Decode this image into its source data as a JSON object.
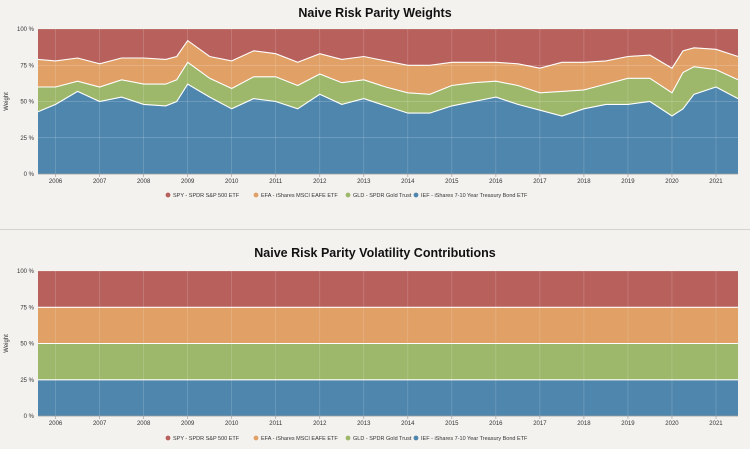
{
  "chart_data": [
    {
      "type": "area",
      "stacked": true,
      "percent": true,
      "title": "Naive Risk Parity Weights",
      "ylabel": "Weight",
      "ylim": [
        0,
        100
      ],
      "yticks": [
        "0 %",
        "25 %",
        "50 %",
        "75 %",
        "100 %"
      ],
      "xticks": [
        "2006",
        "2007",
        "2008",
        "2009",
        "2010",
        "2011",
        "2012",
        "2013",
        "2014",
        "2015",
        "2016",
        "2017",
        "2018",
        "2019",
        "2020",
        "2021"
      ],
      "grid": true,
      "legend": "bottom",
      "x": [
        2005.6,
        2006.0,
        2006.5,
        2007.0,
        2007.5,
        2008.0,
        2008.5,
        2008.75,
        2009.0,
        2009.5,
        2010.0,
        2010.5,
        2011.0,
        2011.5,
        2012.0,
        2012.5,
        2013.0,
        2013.5,
        2014.0,
        2014.5,
        2015.0,
        2015.5,
        2016.0,
        2016.5,
        2017.0,
        2017.5,
        2018.0,
        2018.5,
        2019.0,
        2019.5,
        2020.0,
        2020.25,
        2020.5,
        2021.0,
        2021.5
      ],
      "series": [
        {
          "name": "IEF - iShares 7-10 Year Treasury Bond ETF",
          "color": "#4f86ad",
          "values": [
            43,
            48,
            57,
            50,
            53,
            48,
            47,
            50,
            62,
            53,
            45,
            52,
            50,
            45,
            55,
            48,
            52,
            47,
            42,
            42,
            47,
            50,
            53,
            48,
            44,
            40,
            45,
            48,
            48,
            50,
            40,
            45,
            55,
            60,
            52
          ]
        },
        {
          "name": "GLD - SPDR Gold Trust",
          "color": "#9db86a",
          "values": [
            17,
            12,
            7,
            10,
            12,
            14,
            15,
            15,
            15,
            13,
            14,
            15,
            17,
            16,
            14,
            15,
            13,
            13,
            14,
            13,
            14,
            13,
            11,
            13,
            12,
            17,
            13,
            14,
            18,
            16,
            16,
            25,
            19,
            12,
            13
          ]
        },
        {
          "name": "EFA - iShares MSCI EAFE ETF",
          "color": "#e0a066",
          "values": [
            19,
            18,
            16,
            16,
            15,
            18,
            17,
            16,
            15,
            15,
            19,
            18,
            16,
            16,
            14,
            16,
            16,
            18,
            19,
            20,
            16,
            14,
            13,
            15,
            17,
            20,
            19,
            16,
            15,
            16,
            17,
            15,
            13,
            14,
            16
          ]
        },
        {
          "name": "SPY - SPDR S&P 500 ETF",
          "color": "#b8605c",
          "values": [
            21,
            22,
            20,
            24,
            20,
            20,
            21,
            19,
            8,
            19,
            22,
            15,
            17,
            23,
            17,
            21,
            19,
            22,
            25,
            25,
            23,
            23,
            23,
            24,
            27,
            23,
            23,
            22,
            19,
            18,
            27,
            15,
            13,
            14,
            19
          ]
        }
      ]
    },
    {
      "type": "area",
      "stacked": true,
      "percent": true,
      "title": "Naive Risk Parity Volatility Contributions",
      "ylabel": "Weight",
      "ylim": [
        0,
        100
      ],
      "yticks": [
        "0 %",
        "25 %",
        "50 %",
        "75 %",
        "100 %"
      ],
      "xticks": [
        "2006",
        "2007",
        "2008",
        "2009",
        "2010",
        "2011",
        "2012",
        "2013",
        "2014",
        "2015",
        "2016",
        "2017",
        "2018",
        "2019",
        "2020",
        "2021"
      ],
      "grid": true,
      "legend": "bottom",
      "x": [
        2005.6,
        2021.5
      ],
      "series": [
        {
          "name": "IEF - iShares 7-10 Year Treasury Bond ETF",
          "color": "#4f86ad",
          "values": [
            25,
            25
          ]
        },
        {
          "name": "GLD - SPDR Gold Trust",
          "color": "#9db86a",
          "values": [
            25,
            25
          ]
        },
        {
          "name": "EFA - iShares MSCI EAFE ETF",
          "color": "#e0a066",
          "values": [
            25,
            25
          ]
        },
        {
          "name": "SPY - SPDR S&P 500 ETF",
          "color": "#b8605c",
          "values": [
            25,
            25
          ]
        }
      ]
    }
  ],
  "legend_order": [
    3,
    2,
    1,
    0
  ]
}
